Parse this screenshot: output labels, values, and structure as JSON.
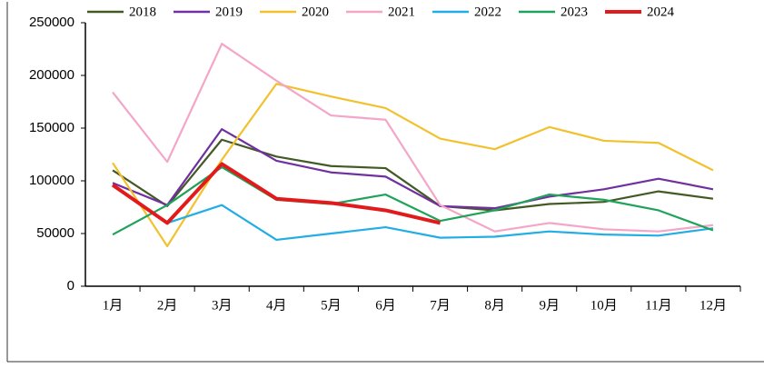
{
  "chart_data": {
    "type": "line",
    "categories": [
      "1月",
      "2月",
      "3月",
      "4月",
      "5月",
      "6月",
      "7月",
      "8月",
      "9月",
      "10月",
      "11月",
      "12月"
    ],
    "series": [
      {
        "name": "2018",
        "color": "#435a25",
        "values": [
          110000,
          76000,
          139000,
          123000,
          114000,
          112000,
          76000,
          72000,
          78000,
          80000,
          90000,
          83000
        ]
      },
      {
        "name": "2019",
        "color": "#7030a0",
        "values": [
          98000,
          77000,
          149000,
          119000,
          108000,
          104000,
          76000,
          74000,
          85000,
          92000,
          102000,
          92000
        ]
      },
      {
        "name": "2020",
        "color": "#f2c12e",
        "values": [
          117000,
          38000,
          120000,
          192000,
          180000,
          169000,
          140000,
          130000,
          151000,
          138000,
          136000,
          110000
        ]
      },
      {
        "name": "2021",
        "color": "#f4a6c9",
        "values": [
          184000,
          118000,
          230000,
          195000,
          162000,
          158000,
          77000,
          52000,
          60000,
          54000,
          52000,
          58000
        ]
      },
      {
        "name": "2022",
        "color": "#22aee4",
        "values": [
          96000,
          60000,
          77000,
          44000,
          50000,
          56000,
          46000,
          47000,
          52000,
          49000,
          48000,
          55000
        ]
      },
      {
        "name": "2023",
        "color": "#1fa35a",
        "values": [
          49000,
          77000,
          113000,
          82000,
          78000,
          87000,
          62000,
          72000,
          87000,
          82000,
          72000,
          53000
        ]
      },
      {
        "name": "2024",
        "color": "#e31a1c",
        "values": [
          96000,
          60000,
          116000,
          83000,
          79000,
          72000,
          60000,
          null,
          null,
          null,
          null,
          null
        ]
      }
    ],
    "ylim": [
      0,
      250000
    ],
    "yticks": [
      0,
      50000,
      100000,
      150000,
      200000,
      250000
    ],
    "legend": "top"
  }
}
